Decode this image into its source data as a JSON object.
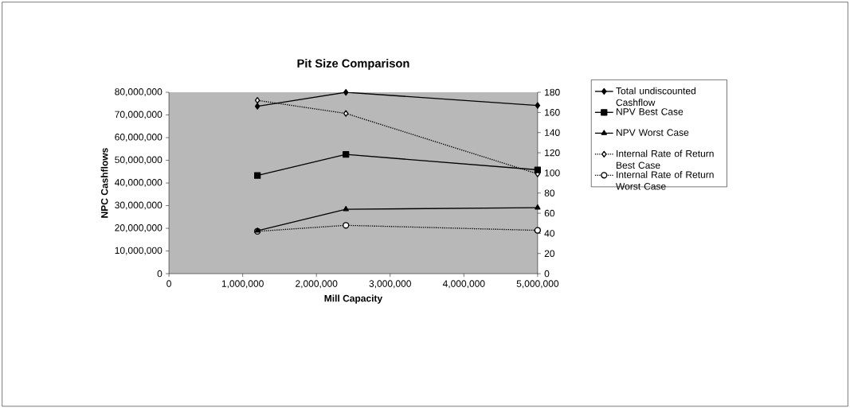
{
  "chart_data": {
    "type": "line",
    "title": "Pit Size Comparison",
    "xlabel": "Mill Capacity",
    "ylabel": "NPC Cashflows",
    "x": [
      1200000,
      2400000,
      5000000
    ],
    "xlim": [
      0,
      5000000
    ],
    "xticks": [
      0,
      {
        "value": 1000000,
        "label": "1,000,000"
      },
      {
        "value": 2000000,
        "label": "2,000,000"
      },
      {
        "value": 3000000,
        "label": "3,000,000"
      },
      {
        "value": 4000000,
        "label": "4,000,000"
      },
      {
        "value": 5000000,
        "label": "5,000,000"
      }
    ],
    "ylim": [
      0,
      80000000
    ],
    "yticks": [
      0,
      {
        "value": 10000000,
        "label": "10,000,000"
      },
      {
        "value": 20000000,
        "label": "20,000,000"
      },
      {
        "value": 30000000,
        "label": "30,000,000"
      },
      {
        "value": 40000000,
        "label": "40,000,000"
      },
      {
        "value": 50000000,
        "label": "50,000,000"
      },
      {
        "value": 60000000,
        "label": "60,000,000"
      },
      {
        "value": 70000000,
        "label": "70,000,000"
      },
      {
        "value": 80000000,
        "label": "80,000,000"
      }
    ],
    "y2lim": [
      0,
      180
    ],
    "y2ticks": [
      0,
      20,
      40,
      60,
      80,
      100,
      120,
      140,
      160,
      180
    ],
    "legend": "right",
    "grid": false,
    "series": [
      {
        "name": "Total undiscounted Cashflow",
        "color": "#000000",
        "marker": "diamond",
        "line_style": "solid",
        "values": [
          73800000,
          80000000,
          74200000
        ]
      },
      {
        "name": "NPV Best Case",
        "color": "#000000",
        "marker": "square",
        "line_style": "solid",
        "values": [
          43300000,
          52600000,
          45800000
        ]
      },
      {
        "name": "NPV Worst Case",
        "color": "#000000",
        "marker": "triangle",
        "line_style": "solid",
        "values": [
          18900000,
          28400000,
          29100000
        ]
      },
      {
        "name": "Internal Rate of Return Best Case",
        "color": "#000000",
        "marker": "diamond",
        "line_style": "dotted",
        "axis": "y2",
        "values": [
          172,
          159,
          99
        ]
      },
      {
        "name": "Internal Rate of Return Worst Case",
        "color": "#000000",
        "marker": "circle",
        "line_style": "dotted",
        "axis": "y2",
        "values": [
          42,
          48,
          43
        ]
      }
    ]
  }
}
